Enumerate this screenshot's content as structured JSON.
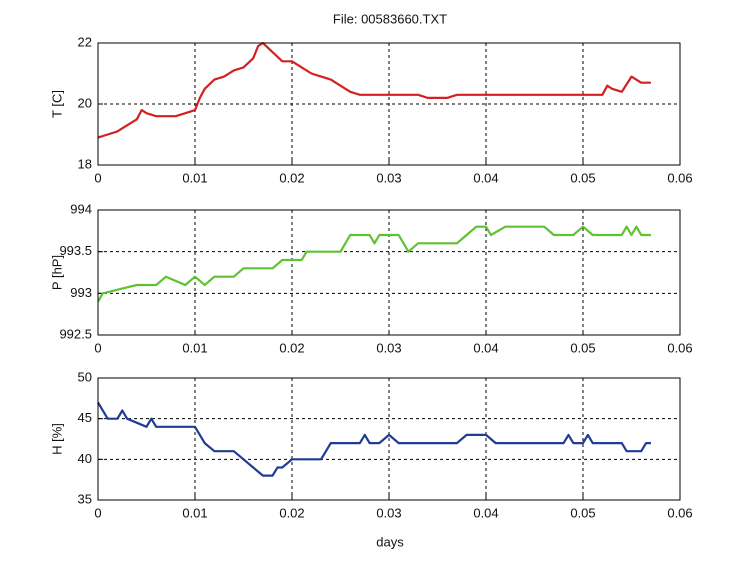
{
  "chart_data": [
    {
      "type": "line",
      "title": "File: 00583660.TXT",
      "ylabel": "T [C]",
      "color": "#d42020",
      "x": [
        0,
        0.001,
        0.002,
        0.003,
        0.004,
        0.0045,
        0.005,
        0.006,
        0.007,
        0.008,
        0.009,
        0.01,
        0.0105,
        0.011,
        0.012,
        0.013,
        0.014,
        0.015,
        0.016,
        0.0165,
        0.017,
        0.018,
        0.019,
        0.02,
        0.021,
        0.022,
        0.023,
        0.024,
        0.025,
        0.026,
        0.027,
        0.03,
        0.033,
        0.034,
        0.036,
        0.037,
        0.04,
        0.045,
        0.047,
        0.05,
        0.052,
        0.0525,
        0.053,
        0.054,
        0.055,
        0.056,
        0.057
      ],
      "values": [
        18.9,
        19.0,
        19.1,
        19.3,
        19.5,
        19.8,
        19.7,
        19.6,
        19.6,
        19.6,
        19.7,
        19.8,
        20.2,
        20.5,
        20.8,
        20.9,
        21.1,
        21.2,
        21.5,
        21.9,
        22.0,
        21.7,
        21.4,
        21.4,
        21.2,
        21.0,
        20.9,
        20.8,
        20.6,
        20.4,
        20.3,
        20.3,
        20.3,
        20.2,
        20.2,
        20.3,
        20.3,
        20.3,
        20.3,
        20.3,
        20.3,
        20.6,
        20.5,
        20.4,
        20.9,
        20.7,
        20.7
      ],
      "xlim": [
        0,
        0.06
      ],
      "xticks": [
        0,
        0.01,
        0.02,
        0.03,
        0.04,
        0.05,
        0.06
      ],
      "ylim": [
        18,
        22
      ],
      "yticks": [
        18,
        20,
        22
      ],
      "grid": true
    },
    {
      "type": "line",
      "ylabel": "P [hP]",
      "color": "#5ec232",
      "x": [
        0,
        0.0005,
        0.004,
        0.006,
        0.007,
        0.009,
        0.01,
        0.011,
        0.012,
        0.014,
        0.015,
        0.018,
        0.019,
        0.021,
        0.0215,
        0.025,
        0.026,
        0.028,
        0.0285,
        0.029,
        0.031,
        0.032,
        0.033,
        0.037,
        0.038,
        0.039,
        0.04,
        0.0405,
        0.042,
        0.046,
        0.047,
        0.049,
        0.05,
        0.051,
        0.054,
        0.0545,
        0.055,
        0.0555,
        0.056,
        0.057
      ],
      "values": [
        992.9,
        993.0,
        993.1,
        993.1,
        993.2,
        993.1,
        993.2,
        993.1,
        993.2,
        993.2,
        993.3,
        993.3,
        993.4,
        993.4,
        993.5,
        993.5,
        993.7,
        993.7,
        993.6,
        993.7,
        993.7,
        993.5,
        993.6,
        993.6,
        993.7,
        993.8,
        993.8,
        993.7,
        993.8,
        993.8,
        993.7,
        993.7,
        993.8,
        993.7,
        993.7,
        993.8,
        993.7,
        993.8,
        993.7,
        993.7
      ],
      "xlim": [
        0,
        0.06
      ],
      "xticks": [
        0,
        0.01,
        0.02,
        0.03,
        0.04,
        0.05,
        0.06
      ],
      "ylim": [
        992.5,
        994
      ],
      "yticks": [
        992.5,
        993,
        993.5,
        994
      ],
      "grid": true
    },
    {
      "type": "line",
      "ylabel": "H [%]",
      "xlabel": "days",
      "color": "#203c96",
      "x": [
        0,
        0.001,
        0.002,
        0.0025,
        0.003,
        0.005,
        0.0055,
        0.006,
        0.01,
        0.011,
        0.012,
        0.014,
        0.015,
        0.016,
        0.017,
        0.018,
        0.0185,
        0.019,
        0.02,
        0.023,
        0.024,
        0.027,
        0.0275,
        0.028,
        0.029,
        0.03,
        0.031,
        0.037,
        0.038,
        0.04,
        0.041,
        0.048,
        0.0485,
        0.049,
        0.05,
        0.0505,
        0.051,
        0.054,
        0.0545,
        0.056,
        0.0565,
        0.057
      ],
      "values": [
        47,
        45,
        45,
        46,
        45,
        44,
        45,
        44,
        44,
        42,
        41,
        41,
        40,
        39,
        38,
        38,
        39,
        39,
        40,
        40,
        42,
        42,
        43,
        42,
        42,
        43,
        42,
        42,
        43,
        43,
        42,
        42,
        43,
        42,
        42,
        43,
        42,
        42,
        41,
        41,
        42,
        42
      ],
      "xlim": [
        0,
        0.06
      ],
      "xticks": [
        0,
        0.01,
        0.02,
        0.03,
        0.04,
        0.05,
        0.06
      ],
      "ylim": [
        35,
        50
      ],
      "yticks": [
        35,
        40,
        45,
        50
      ],
      "grid": true
    }
  ]
}
